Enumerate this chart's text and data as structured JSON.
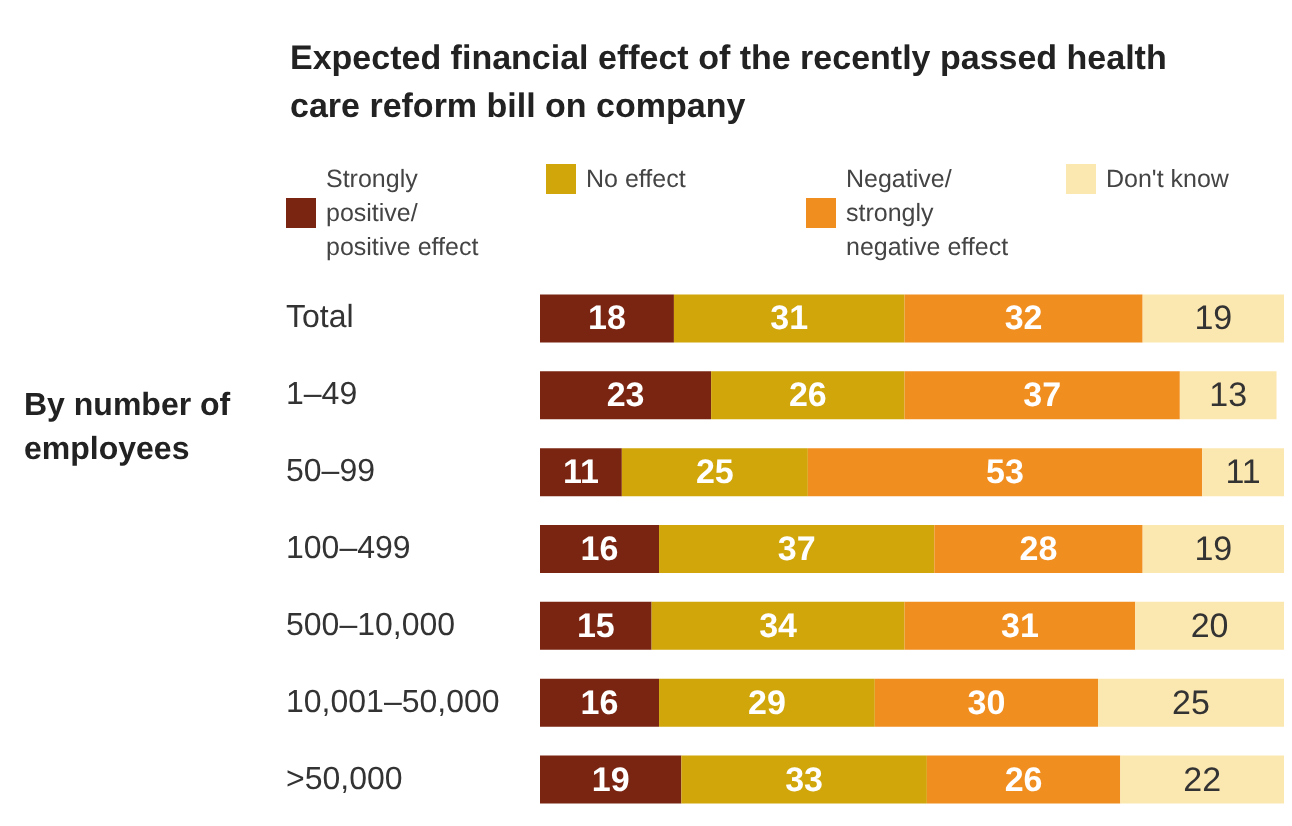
{
  "chart_data": {
    "type": "bar",
    "orientation": "horizontal",
    "stacked": true,
    "title": "Expected financial effect of the recently passed health care reform bill on company",
    "categories": [
      "Total",
      "1–49",
      "50–99",
      "100–499",
      "500–10,000",
      "10,001–50,000",
      ">50,000"
    ],
    "series": [
      {
        "name": "Strongly positive/ positive effect",
        "color": "#7a2512",
        "values": [
          18,
          23,
          11,
          16,
          15,
          16,
          19
        ]
      },
      {
        "name": "No effect",
        "color": "#d0a60a",
        "values": [
          31,
          26,
          25,
          37,
          34,
          29,
          33
        ]
      },
      {
        "name": "Negative/strongly negative effect",
        "color": "#f08e20",
        "values": [
          32,
          37,
          53,
          28,
          31,
          30,
          26
        ]
      },
      {
        "name": "Don't know",
        "color": "#fbe7b0",
        "values": [
          19,
          13,
          11,
          19,
          20,
          25,
          22
        ]
      }
    ],
    "annotations": [
      "By number of employees"
    ],
    "xlim": [
      0,
      100
    ],
    "tick_labels": "y",
    "data_labels": true,
    "legend": "top"
  }
}
